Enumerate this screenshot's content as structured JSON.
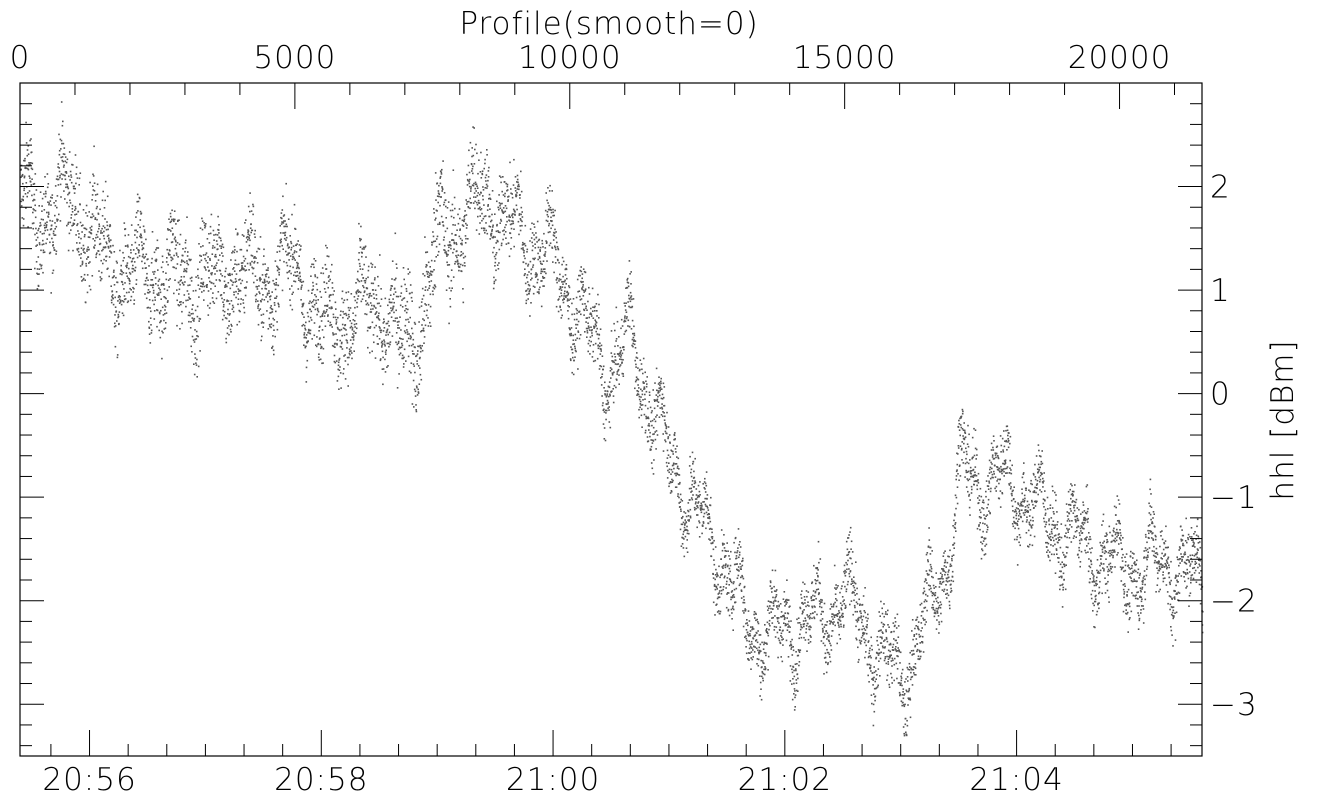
{
  "chart_data": {
    "type": "scatter",
    "title": "Profile(smooth=0)",
    "ylabel": "hhl [dBm]",
    "xlabel": "",
    "top_axis": {
      "range": [
        0,
        21500
      ],
      "major_ticks": [
        0,
        5000,
        10000,
        15000,
        20000
      ],
      "tick_labels": [
        "0",
        "5000",
        "10000",
        "15000",
        "20000"
      ],
      "minor_step": 1000
    },
    "bottom_axis": {
      "unit": "time of day",
      "range": [
        "20:55:24",
        "21:05:36"
      ],
      "major_ticks": [
        "20:56",
        "20:58",
        "21:00",
        "21:02",
        "21:04"
      ],
      "tick_labels": [
        "20:56",
        "20:58",
        "21:00",
        "21:02",
        "21:04"
      ],
      "minor_step": "20s"
    },
    "right_axis": {
      "range": [
        -3.5,
        3.0
      ],
      "major_ticks": [
        -3,
        -2,
        -1,
        0,
        1,
        2
      ],
      "tick_labels": [
        "−3",
        "−2",
        "−1",
        "0",
        "1",
        "2"
      ],
      "minor_step": 0.2
    },
    "marker_color": "#555555",
    "series": [
      {
        "x": [
          "20:55:24",
          "20:55:40",
          "20:55:50",
          "20:56:00",
          "20:56:10",
          "20:56:20",
          "20:56:30",
          "20:56:45",
          "20:57:00",
          "20:57:15",
          "20:57:30",
          "20:57:45",
          "20:58:00",
          "20:58:15",
          "20:58:30",
          "20:58:40",
          "20:58:50",
          "20:59:00",
          "20:59:10",
          "20:59:20",
          "20:59:30",
          "20:59:45",
          "21:00:00",
          "21:00:10",
          "21:00:20",
          "21:00:30",
          "21:00:40",
          "21:00:50",
          "21:01:00",
          "21:01:10",
          "21:01:20",
          "21:01:30",
          "21:01:40",
          "21:01:50",
          "21:02:00",
          "21:02:10",
          "21:02:20",
          "21:02:30",
          "21:02:40",
          "21:02:50",
          "21:03:00",
          "21:03:10",
          "21:03:20",
          "21:03:25",
          "21:03:30",
          "21:03:40",
          "21:03:50",
          "21:04:00",
          "21:04:15",
          "21:04:30",
          "21:04:45",
          "21:05:00",
          "21:05:15",
          "21:05:36"
        ],
        "y": [
          1.9,
          1.7,
          2.0,
          1.5,
          1.3,
          1.1,
          1.2,
          1.1,
          1.1,
          1.2,
          1.1,
          1.25,
          0.7,
          0.75,
          0.9,
          0.55,
          0.6,
          1.5,
          1.6,
          1.9,
          1.8,
          1.5,
          1.3,
          0.9,
          0.5,
          0.2,
          0.6,
          -0.1,
          -0.6,
          -1.0,
          -1.35,
          -1.7,
          -2.2,
          -2.3,
          -2.3,
          -2.15,
          -2.2,
          -1.9,
          -2.25,
          -2.5,
          -2.75,
          -2.3,
          -1.8,
          -1.5,
          -0.7,
          -0.9,
          -0.8,
          -0.9,
          -1.2,
          -1.4,
          -1.6,
          -1.7,
          -1.6,
          -1.8
        ],
        "spread": [
          0.4,
          0.4,
          0.4,
          0.45,
          0.4,
          0.4,
          0.4,
          0.45,
          0.45,
          0.45,
          0.4,
          0.35,
          0.4,
          0.4,
          0.4,
          0.45,
          0.5,
          0.5,
          0.45,
          0.4,
          0.4,
          0.35,
          0.35,
          0.3,
          0.3,
          0.3,
          0.3,
          0.3,
          0.3,
          0.3,
          0.3,
          0.3,
          0.3,
          0.3,
          0.3,
          0.3,
          0.3,
          0.3,
          0.3,
          0.3,
          0.3,
          0.3,
          0.3,
          0.3,
          0.3,
          0.3,
          0.3,
          0.3,
          0.3,
          0.3,
          0.3,
          0.3,
          0.3,
          0.3
        ]
      }
    ],
    "grid": false,
    "legend": "none"
  }
}
